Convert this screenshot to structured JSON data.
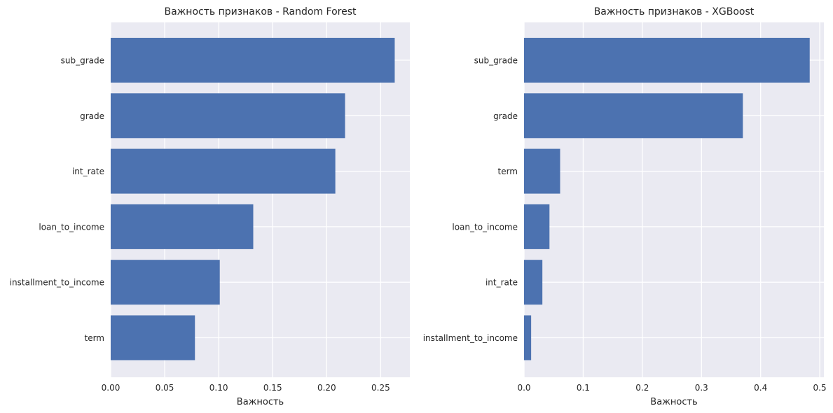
{
  "chart_data": [
    {
      "type": "bar",
      "orientation": "horizontal",
      "title": "Важность признаков - Random Forest",
      "xlabel": "Важность",
      "ylabel": "",
      "categories": [
        "sub_grade",
        "grade",
        "int_rate",
        "loan_to_income",
        "installment_to_income",
        "term"
      ],
      "values": [
        0.263,
        0.217,
        0.208,
        0.132,
        0.101,
        0.078
      ],
      "xlim": [
        0,
        0.277
      ],
      "xticks": [
        0.0,
        0.05,
        0.1,
        0.15,
        0.2,
        0.25
      ],
      "xtick_labels": [
        "0.00",
        "0.05",
        "0.10",
        "0.15",
        "0.20",
        "0.25"
      ],
      "grid": true,
      "bar_color": "#4c72b0"
    },
    {
      "type": "bar",
      "orientation": "horizontal",
      "title": "Важность признаков - XGBoost",
      "xlabel": "Важность",
      "ylabel": "",
      "categories": [
        "sub_grade",
        "grade",
        "term",
        "loan_to_income",
        "int_rate",
        "installment_to_income"
      ],
      "values": [
        0.483,
        0.37,
        0.061,
        0.043,
        0.031,
        0.012
      ],
      "xlim": [
        0,
        0.507
      ],
      "xticks": [
        0.0,
        0.1,
        0.2,
        0.3,
        0.4,
        0.5
      ],
      "xtick_labels": [
        "0.0",
        "0.1",
        "0.2",
        "0.3",
        "0.4",
        "0.5"
      ],
      "grid": true,
      "bar_color": "#4c72b0"
    }
  ]
}
